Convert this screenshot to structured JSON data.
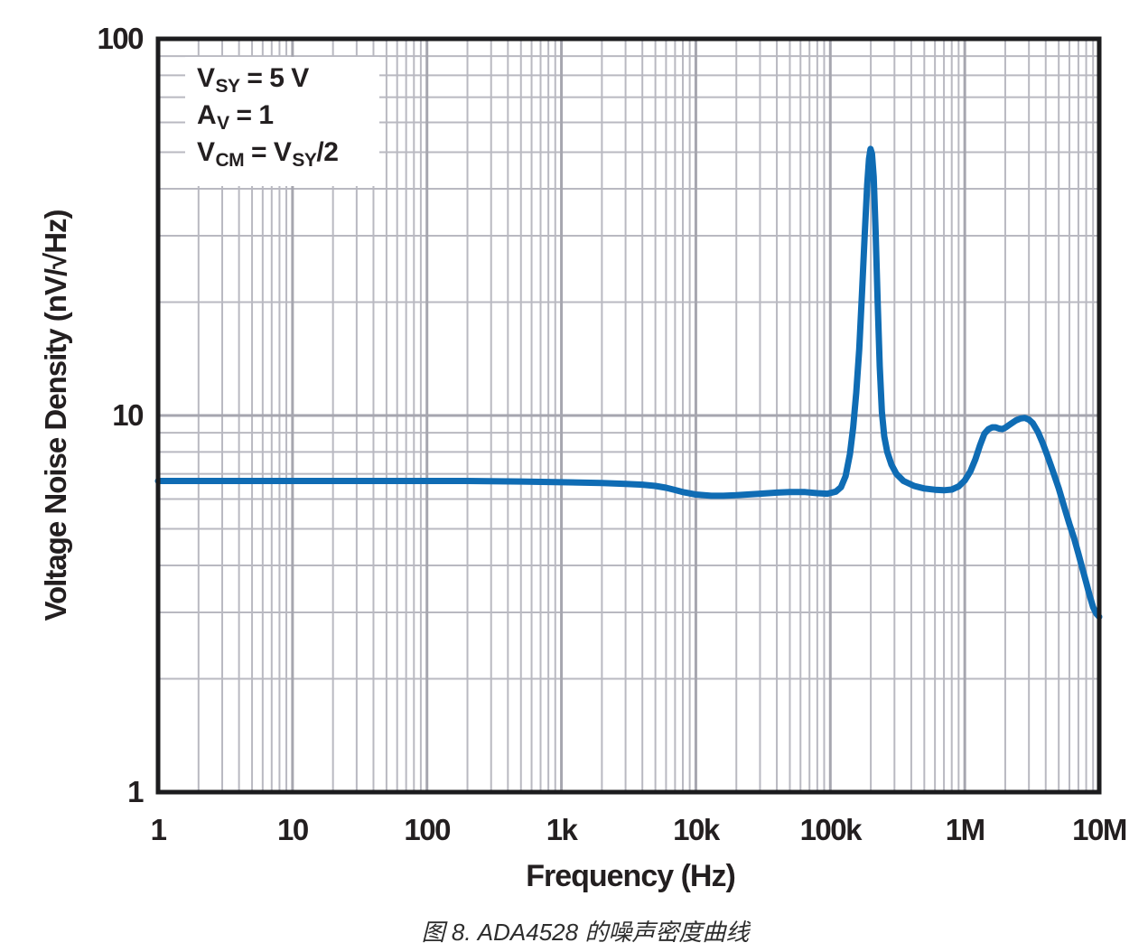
{
  "figure": {
    "caption": "图 8. ADA4528 的噪声密度曲线"
  },
  "axes": {
    "x_title": "Frequency (Hz)",
    "y_title": "Voltage Noise Density (nV/√Hz)",
    "x_ticks": [
      {
        "label": "1",
        "value": 1
      },
      {
        "label": "10",
        "value": 10
      },
      {
        "label": "100",
        "value": 100
      },
      {
        "label": "1k",
        "value": 1000
      },
      {
        "label": "10k",
        "value": 10000
      },
      {
        "label": "100k",
        "value": 100000
      },
      {
        "label": "1M",
        "value": 1000000
      },
      {
        "label": "10M",
        "value": 10000000
      }
    ],
    "y_ticks": [
      {
        "label": "1",
        "value": 1
      },
      {
        "label": "10",
        "value": 10
      },
      {
        "label": "100",
        "value": 100
      }
    ]
  },
  "annotation": {
    "lines": [
      {
        "segments": [
          {
            "t": "V"
          },
          {
            "t": "SY",
            "sub": true
          },
          {
            "t": " = 5 V"
          }
        ]
      },
      {
        "segments": [
          {
            "t": "A"
          },
          {
            "t": "V",
            "sub": true
          },
          {
            "t": " = 1"
          }
        ]
      },
      {
        "segments": [
          {
            "t": "V"
          },
          {
            "t": "CM",
            "sub": true
          },
          {
            "t": " = V"
          },
          {
            "t": "SY",
            "sub": true
          },
          {
            "t": "/2"
          }
        ]
      }
    ]
  },
  "colors": {
    "curve": "#0f6cb4",
    "grid_minor": "#b9b9c1",
    "grid_major": "#a6a6af",
    "axis_frame": "#1c1c1e",
    "text": "#231f20",
    "background": "#ffffff"
  },
  "chart_data": {
    "type": "line",
    "title": "",
    "xlabel": "Frequency (Hz)",
    "ylabel": "Voltage Noise Density (nV/√Hz)",
    "x_scale": "log",
    "y_scale": "log",
    "xlim": [
      1,
      10000000
    ],
    "ylim": [
      1,
      100
    ],
    "grid": true,
    "legend": false,
    "conditions": [
      "VSY = 5 V",
      "AV = 1",
      "VCM = VSY/2"
    ],
    "series": [
      {
        "name": "ADA4528 voltage noise density (nV/√Hz)",
        "color": "#0f6cb4",
        "points": [
          [
            1,
            6.7
          ],
          [
            2,
            6.7
          ],
          [
            5,
            6.7
          ],
          [
            10,
            6.7
          ],
          [
            20,
            6.7
          ],
          [
            50,
            6.7
          ],
          [
            100,
            6.7
          ],
          [
            200,
            6.7
          ],
          [
            500,
            6.68
          ],
          [
            1000,
            6.65
          ],
          [
            2000,
            6.62
          ],
          [
            3000,
            6.58
          ],
          [
            4000,
            6.55
          ],
          [
            5000,
            6.5
          ],
          [
            6000,
            6.43
          ],
          [
            7000,
            6.34
          ],
          [
            8000,
            6.26
          ],
          [
            10000,
            6.17
          ],
          [
            13000,
            6.12
          ],
          [
            16000,
            6.12
          ],
          [
            20000,
            6.14
          ],
          [
            30000,
            6.2
          ],
          [
            40000,
            6.24
          ],
          [
            50000,
            6.26
          ],
          [
            65000,
            6.26
          ],
          [
            80000,
            6.22
          ],
          [
            95000,
            6.2
          ],
          [
            110000,
            6.28
          ],
          [
            120000,
            6.45
          ],
          [
            130000,
            6.9
          ],
          [
            140000,
            7.9
          ],
          [
            148000,
            9.3
          ],
          [
            156000,
            11.5
          ],
          [
            164000,
            15
          ],
          [
            172000,
            21
          ],
          [
            180000,
            30
          ],
          [
            188000,
            41
          ],
          [
            194000,
            48
          ],
          [
            199000,
            51
          ],
          [
            204000,
            49.5
          ],
          [
            210000,
            43
          ],
          [
            217000,
            31
          ],
          [
            225000,
            20
          ],
          [
            233000,
            13.5
          ],
          [
            242000,
            10.2
          ],
          [
            252000,
            8.8
          ],
          [
            265000,
            8.0
          ],
          [
            285000,
            7.4
          ],
          [
            310000,
            7.0
          ],
          [
            350000,
            6.7
          ],
          [
            420000,
            6.5
          ],
          [
            500000,
            6.4
          ],
          [
            600000,
            6.35
          ],
          [
            700000,
            6.33
          ],
          [
            800000,
            6.36
          ],
          [
            900000,
            6.48
          ],
          [
            1000000,
            6.72
          ],
          [
            1100000,
            7.1
          ],
          [
            1200000,
            7.65
          ],
          [
            1300000,
            8.35
          ],
          [
            1400000,
            8.95
          ],
          [
            1500000,
            9.2
          ],
          [
            1600000,
            9.3
          ],
          [
            1700000,
            9.3
          ],
          [
            1800000,
            9.23
          ],
          [
            1900000,
            9.2
          ],
          [
            2000000,
            9.28
          ],
          [
            2200000,
            9.5
          ],
          [
            2400000,
            9.7
          ],
          [
            2600000,
            9.82
          ],
          [
            2800000,
            9.85
          ],
          [
            3000000,
            9.75
          ],
          [
            3200000,
            9.55
          ],
          [
            3500000,
            9.05
          ],
          [
            3800000,
            8.45
          ],
          [
            4100000,
            7.85
          ],
          [
            4500000,
            7.15
          ],
          [
            5000000,
            6.4
          ],
          [
            5500000,
            5.7
          ],
          [
            6000000,
            5.15
          ],
          [
            6500000,
            4.72
          ],
          [
            7000000,
            4.3
          ],
          [
            7500000,
            3.92
          ],
          [
            8000000,
            3.6
          ],
          [
            8500000,
            3.32
          ],
          [
            9000000,
            3.1
          ],
          [
            9500000,
            2.98
          ],
          [
            10000000,
            2.92
          ]
        ]
      }
    ]
  }
}
